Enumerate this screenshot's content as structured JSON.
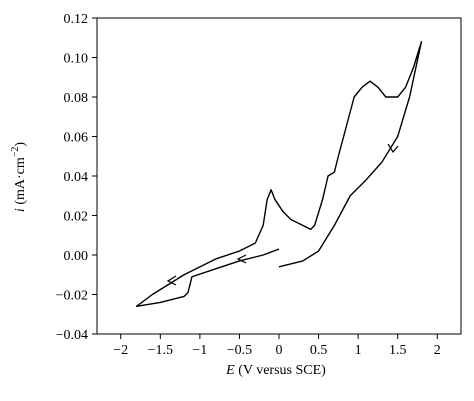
{
  "chart_data": {
    "type": "line",
    "color": "#000000",
    "x_label": {
      "symbol": "E",
      "rest": "(V versus SCE)"
    },
    "y_label": {
      "symbol": "i",
      "unit": "(mA·cm",
      "exponent": "−2",
      "close": ")"
    },
    "x": [
      0,
      0.3,
      0.5,
      0.7,
      0.9,
      1.1,
      1.3,
      1.5,
      1.65,
      1.8,
      1.7,
      1.6,
      1.5,
      1.35,
      1.25,
      1.15,
      1.05,
      0.95,
      0.85,
      0.75,
      0.7,
      0.62,
      0.55,
      0.45,
      0.4,
      0.3,
      0.15,
      0.05,
      -0.05,
      -0.1,
      -0.15,
      -0.2,
      -0.3,
      -0.5,
      -0.8,
      -1.0,
      -1.2,
      -1.4,
      -1.6,
      -1.8,
      -1.5,
      -1.2,
      -1.15,
      -1.1,
      -0.8,
      -0.5,
      -0.2,
      0
    ],
    "values": [
      -0.006,
      -0.003,
      0.002,
      0.015,
      0.03,
      0.038,
      0.047,
      0.06,
      0.08,
      0.108,
      0.095,
      0.085,
      0.08,
      0.08,
      0.085,
      0.088,
      0.085,
      0.08,
      0.065,
      0.05,
      0.042,
      0.04,
      0.028,
      0.015,
      0.013,
      0.015,
      0.018,
      0.022,
      0.028,
      0.033,
      0.028,
      0.015,
      0.006,
      0.002,
      -0.002,
      -0.006,
      -0.01,
      -0.015,
      -0.02,
      -0.026,
      -0.024,
      -0.021,
      -0.019,
      -0.011,
      -0.007,
      -0.003,
      0,
      0.003
    ],
    "xlim": [
      -2.3,
      2.3
    ],
    "xticks": [
      {
        "value": -2,
        "label": "−2"
      },
      {
        "value": -1.5,
        "label": "−1.5"
      },
      {
        "value": -1,
        "label": "−1"
      },
      {
        "value": -0.5,
        "label": "−0.5"
      },
      0,
      0.5,
      1,
      1.5,
      2
    ],
    "ylim": [
      -0.04,
      0.12
    ],
    "yticks": [
      {
        "value": -0.04,
        "label": "−0.04"
      },
      {
        "value": -0.02,
        "label": "−0.02"
      },
      {
        "value": 0,
        "label": "0.00"
      },
      0.02,
      0.04,
      0.06,
      0.08,
      {
        "value": 0.1,
        "label": "0.10"
      },
      0.12
    ],
    "grid": false
  }
}
